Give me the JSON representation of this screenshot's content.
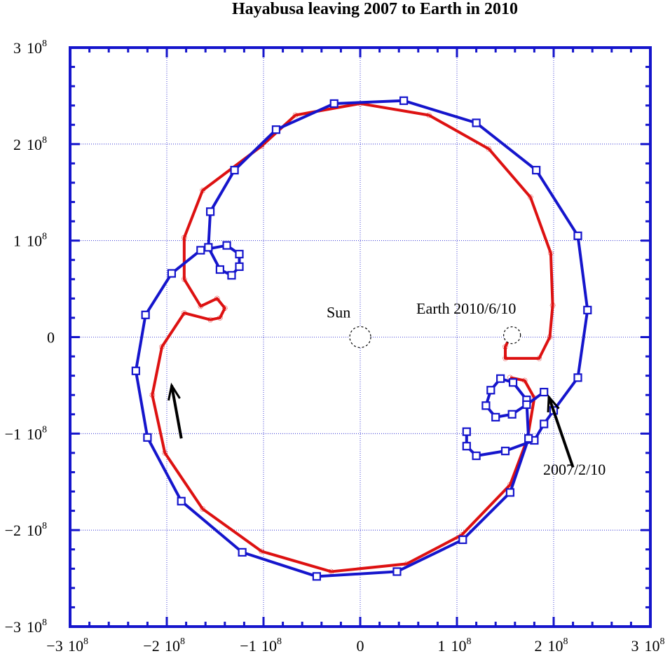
{
  "chart_data": {
    "type": "line",
    "title": "Hayabusa leaving 2007 to Earth in 2010",
    "xlim": [
      -3,
      3
    ],
    "ylim": [
      -3,
      3
    ],
    "axis_scale_note": "values in units of 10^8",
    "x_ticks": [
      {
        "value": -3,
        "mant": "−3",
        "exp": "8",
        "base": "10"
      },
      {
        "value": -2,
        "mant": "−2",
        "exp": "8",
        "base": "10"
      },
      {
        "value": -1,
        "mant": "−1",
        "exp": "8",
        "base": "10"
      },
      {
        "value": 0,
        "mant": "0",
        "exp": "",
        "base": ""
      },
      {
        "value": 1,
        "mant": "1",
        "exp": "8",
        "base": "10"
      },
      {
        "value": 2,
        "mant": "2",
        "exp": "8",
        "base": "10"
      },
      {
        "value": 3,
        "mant": "3",
        "exp": "8",
        "base": "10"
      }
    ],
    "y_ticks": [
      {
        "value": 3,
        "mant": "3",
        "exp": "8",
        "base": "10"
      },
      {
        "value": 2,
        "mant": "2",
        "exp": "8",
        "base": "10"
      },
      {
        "value": 1,
        "mant": "1",
        "exp": "8",
        "base": "10"
      },
      {
        "value": 0,
        "mant": "0",
        "exp": "",
        "base": ""
      },
      {
        "value": -1,
        "mant": "−1",
        "exp": "8",
        "base": "10"
      },
      {
        "value": -2,
        "mant": "−2",
        "exp": "8",
        "base": "10"
      },
      {
        "value": -3,
        "mant": "−3",
        "exp": "8",
        "base": "10"
      }
    ],
    "grid": "dotted at 1e8 intervals",
    "series": [
      {
        "color": "#dd1111",
        "marker": "circle",
        "points": [
          [
            1.55,
            0.0
          ],
          [
            1.5,
            -0.1
          ],
          [
            1.5,
            -0.22
          ],
          [
            1.85,
            -0.22
          ],
          [
            1.96,
            0.0
          ],
          [
            1.99,
            0.33
          ],
          [
            1.97,
            0.87
          ],
          [
            1.76,
            1.45
          ],
          [
            1.33,
            1.95
          ],
          [
            0.71,
            2.3
          ],
          [
            0.0,
            2.42
          ],
          [
            -0.67,
            2.3
          ],
          [
            -1.02,
            1.98
          ],
          [
            -1.63,
            1.52
          ],
          [
            -1.82,
            1.03
          ],
          [
            -1.82,
            0.6
          ],
          [
            -1.65,
            0.32
          ],
          [
            -1.48,
            0.4
          ],
          [
            -1.4,
            0.3
          ],
          [
            -1.45,
            0.2
          ],
          [
            -1.55,
            0.18
          ],
          [
            -1.82,
            0.25
          ],
          [
            -2.05,
            -0.1
          ],
          [
            -2.15,
            -0.6
          ],
          [
            -2.02,
            -1.2
          ],
          [
            -1.63,
            -1.78
          ],
          [
            -1.02,
            -2.22
          ],
          [
            -0.3,
            -2.43
          ],
          [
            0.48,
            -2.35
          ],
          [
            1.05,
            -2.05
          ],
          [
            1.55,
            -1.53
          ],
          [
            1.73,
            -1.05
          ],
          [
            1.8,
            -0.63
          ],
          [
            1.7,
            -0.45
          ],
          [
            1.55,
            -0.42
          ]
        ]
      },
      {
        "color": "#1515cc",
        "marker": "square",
        "points": [
          [
            1.1,
            -0.98
          ],
          [
            1.1,
            -1.13
          ],
          [
            1.2,
            -1.23
          ],
          [
            1.5,
            -1.18
          ],
          [
            1.8,
            -1.07
          ],
          [
            1.9,
            -0.9
          ],
          [
            2.0,
            -0.76
          ],
          [
            2.25,
            -0.42
          ],
          [
            2.35,
            0.28
          ],
          [
            2.25,
            1.05
          ],
          [
            1.82,
            1.73
          ],
          [
            1.2,
            2.22
          ],
          [
            0.45,
            2.45
          ],
          [
            -0.27,
            2.42
          ],
          [
            -0.87,
            2.15
          ],
          [
            -1.3,
            1.73
          ],
          [
            -1.55,
            1.3
          ],
          [
            -1.57,
            0.93
          ],
          [
            -1.45,
            0.7
          ],
          [
            -1.33,
            0.64
          ],
          [
            -1.25,
            0.73
          ],
          [
            -1.25,
            0.86
          ],
          [
            -1.38,
            0.95
          ],
          [
            -1.65,
            0.9
          ],
          [
            -1.95,
            0.66
          ],
          [
            -2.22,
            0.23
          ],
          [
            -2.32,
            -0.35
          ],
          [
            -2.2,
            -1.04
          ],
          [
            -1.85,
            -1.7
          ],
          [
            -1.22,
            -2.23
          ],
          [
            -0.45,
            -2.48
          ],
          [
            0.38,
            -2.43
          ],
          [
            1.06,
            -2.1
          ],
          [
            1.55,
            -1.61
          ],
          [
            1.74,
            -1.05
          ],
          [
            1.72,
            -0.65
          ],
          [
            1.58,
            -0.47
          ],
          [
            1.45,
            -0.43
          ],
          [
            1.35,
            -0.55
          ],
          [
            1.3,
            -0.71
          ],
          [
            1.4,
            -0.83
          ],
          [
            1.57,
            -0.8
          ],
          [
            1.72,
            -0.7
          ],
          [
            1.9,
            -0.57
          ]
        ]
      }
    ],
    "annotations": [
      {
        "text": "Sun",
        "x": 0.0,
        "y": 0.0
      },
      {
        "text": "Earth 2010/6/10",
        "x": 1.57,
        "y": 0.02
      },
      {
        "text": "2007/2/10",
        "from": [
          2.2,
          -1.35
        ],
        "to": [
          1.95,
          -0.62
        ]
      },
      {
        "text": "",
        "from": [
          -1.85,
          -1.05
        ],
        "to": [
          -1.95,
          -0.5
        ]
      }
    ]
  }
}
